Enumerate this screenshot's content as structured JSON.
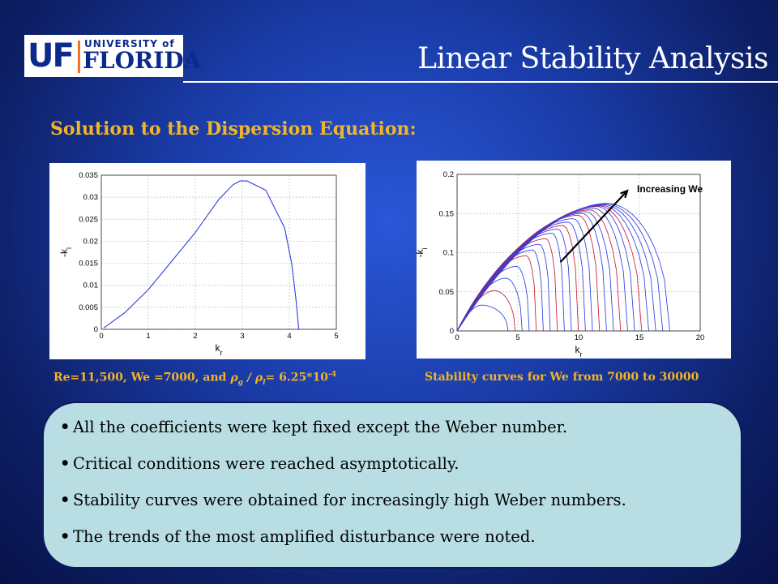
{
  "logo": {
    "uf": "UF",
    "university_of": "UNIVERSITY of",
    "florida": "FLORIDA"
  },
  "title": "Linear Stability Analysis",
  "subtitle": "Solution to the Dispersion Equation:",
  "captions": {
    "left_prefix": "Re=11,500, We =7000, and ",
    "left_rho": "ρ",
    "left_sub_g": "g",
    "left_slash": "/",
    "left_sub_l": "l",
    "left_eq": "= 6.25*10",
    "left_exp": "-4",
    "right": "Stability curves for We from 7000 to 30000"
  },
  "bullets": [
    "All the coefficients were kept fixed except the Weber number.",
    "Critical conditions were reached asymptotically.",
    "Stability curves were obtained for increasingly high Weber numbers.",
    "The trends of the most amplified disturbance were noted."
  ],
  "bullet_symbol": "•",
  "colors": {
    "title_accent": "#f2b527",
    "curve_blue": "#2f3ee0",
    "curve_red": "#c81e32",
    "panel_bg": "#b8dde3"
  },
  "chart_data": [
    {
      "type": "line",
      "xlabel": "k_r",
      "ylabel": "-k_i",
      "xlim": [
        0,
        5
      ],
      "ylim": [
        0,
        0.035
      ],
      "xticks": [
        "0",
        "1",
        "2",
        "3",
        "4",
        "5"
      ],
      "yticks": [
        "0",
        "0.005",
        "0.01",
        "0.015",
        "0.02",
        "0.025",
        "0.03",
        "0.035"
      ],
      "grid": true,
      "series": [
        {
          "x": [
            0.05,
            0.5,
            1.0,
            1.5,
            2.0,
            2.5,
            2.8,
            2.95,
            3.1,
            3.5,
            3.9,
            4.05,
            4.15,
            4.2
          ],
          "y": [
            0.0003,
            0.0038,
            0.009,
            0.0155,
            0.022,
            0.0295,
            0.0328,
            0.0337,
            0.0337,
            0.0316,
            0.023,
            0.015,
            0.006,
            0
          ]
        }
      ]
    },
    {
      "type": "line",
      "xlabel": "k_r",
      "ylabel": "-k_i",
      "xlim": [
        0,
        20
      ],
      "ylim": [
        0,
        0.2
      ],
      "xticks": [
        "0",
        "5",
        "10",
        "15",
        "20"
      ],
      "yticks": [
        "0",
        "0.05",
        "0.1",
        "0.15",
        "0.2"
      ],
      "grid": true,
      "annotation": "Increasing We",
      "curve_count": 24,
      "peak_envelope": {
        "x": [
          2.0,
          5.6,
          8.0,
          10.0,
          11.5,
          12.3
        ],
        "y": [
          0.033,
          0.095,
          0.127,
          0.148,
          0.159,
          0.163
        ]
      },
      "cutoff_range": [
        4.2,
        17.5
      ]
    }
  ]
}
